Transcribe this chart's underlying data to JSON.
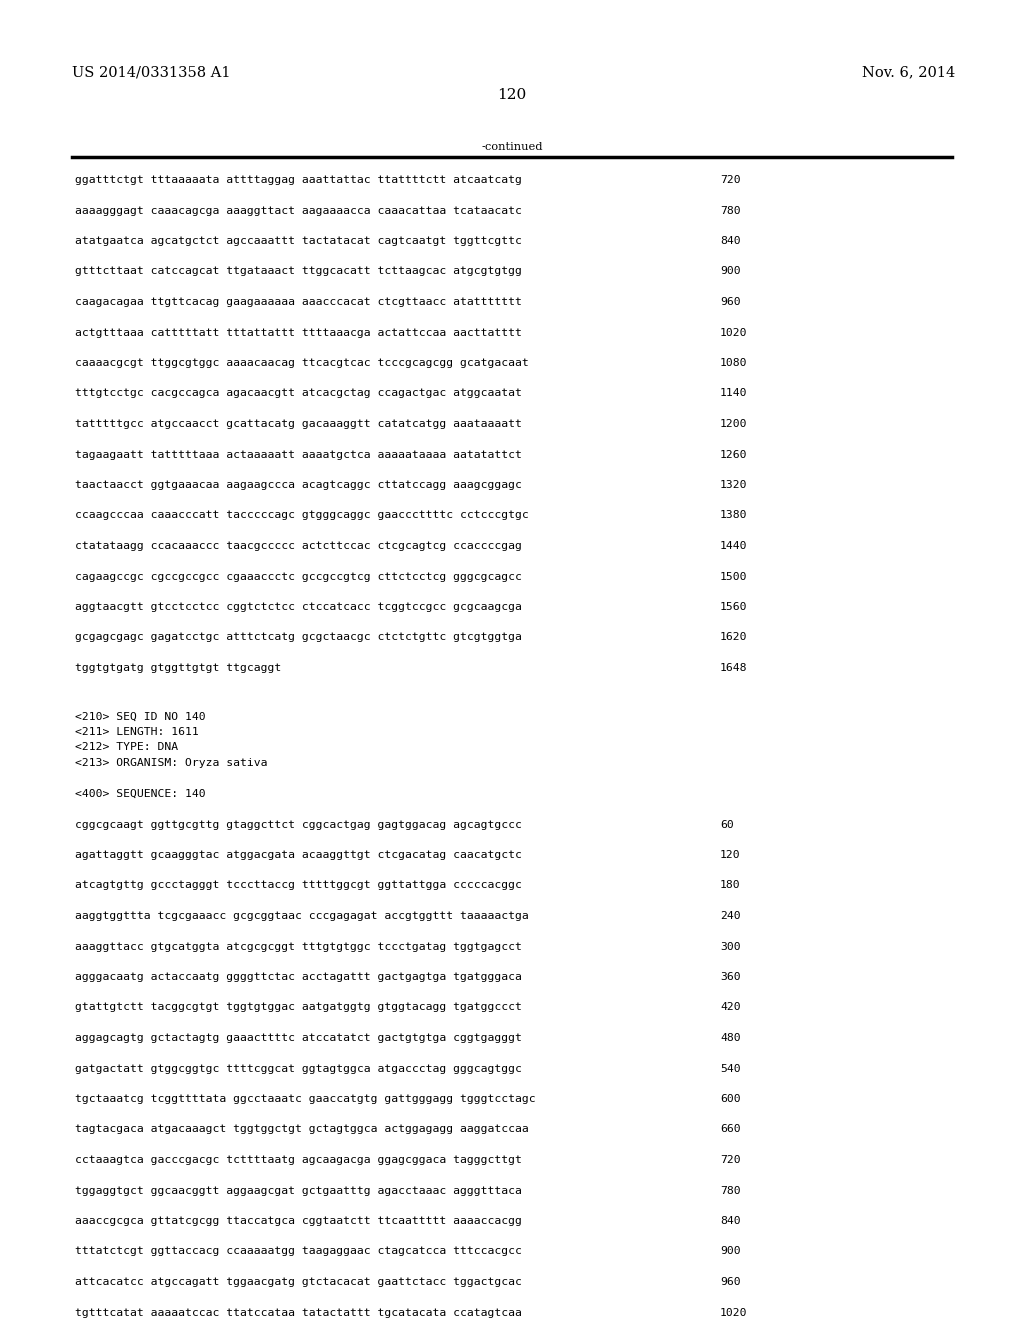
{
  "page_number": "120",
  "left_header": "US 2014/0331358 A1",
  "right_header": "Nov. 6, 2014",
  "continued_label": "-continued",
  "background_color": "#ffffff",
  "text_color": "#000000",
  "font_size_header": 10.5,
  "font_size_page_num": 11.0,
  "font_size_seq": 8.2,
  "font_size_meta": 8.2,
  "sequence_lines_part1": [
    [
      "ggatttctgt tttaaaaata attttaggag aaattattac ttattttctt atcaatcatg",
      "720"
    ],
    [
      "aaaagggagt caaacagcga aaaggttact aagaaaacca caaacattaa tcataacatc",
      "780"
    ],
    [
      "atatgaatca agcatgctct agccaaattt tactatacat cagtcaatgt tggttcgttc",
      "840"
    ],
    [
      "gtttcttaat catccagcat ttgataaact ttggcacatt tcttaagcac atgcgtgtgg",
      "900"
    ],
    [
      "caagacagaa ttgttcacag gaagaaaaaa aaacccacat ctcgttaacc atattttttt",
      "960"
    ],
    [
      "actgtttaaa catttttatt tttattattt ttttaaacga actattccaa aacttatttt",
      "1020"
    ],
    [
      "caaaacgcgt ttggcgtggc aaaacaacag ttcacgtcac tcccgcagcgg gcatgacaat",
      "1080"
    ],
    [
      "tttgtcctgc cacgccagca agacaacgtt atcacgctag ccagactgac atggcaatat",
      "1140"
    ],
    [
      "tatttttgcc atgccaacct gcattacatg gacaaaggtt catatcatgg aaataaaatt",
      "1200"
    ],
    [
      "tagaagaatt tatttttaaa actaaaaatt aaaatgctca aaaaataaaa aatatattct",
      "1260"
    ],
    [
      "taactaacct ggtgaaacaa aagaagccca acagtcaggc cttatccagg aaagcggagc",
      "1320"
    ],
    [
      "ccaagcccaa caaacccatt tacccccagc gtgggcaggc gaacccttttc cctcccgtgc",
      "1380"
    ],
    [
      "ctatataagg ccacaaaccc taacgccccc actcttccac ctcgcagtcg ccaccccgag",
      "1440"
    ],
    [
      "cagaagccgc cgccgccgcc cgaaaccctc gccgccgtcg cttctcctcg gggcgcagcc",
      "1500"
    ],
    [
      "aggtaacgtt gtcctcctcc cggtctctcc ctccatcacc tcggtccgcc gcgcaagcga",
      "1560"
    ],
    [
      "gcgagcgagc gagatcctgc atttctcatg gcgctaacgc ctctctgttc gtcgtggtga",
      "1620"
    ],
    [
      "tggtgtgatg gtggttgtgt ttgcaggt",
      "1648"
    ]
  ],
  "metadata_lines": [
    "<210> SEQ ID NO 140",
    "<211> LENGTH: 1611",
    "<212> TYPE: DNA",
    "<213> ORGANISM: Oryza sativa",
    "",
    "<400> SEQUENCE: 140"
  ],
  "sequence_lines_part2": [
    [
      "cggcgcaagt ggttgcgttg gtaggcttct cggcactgag gagtggacag agcagtgccc",
      "60"
    ],
    [
      "agattaggtt gcaagggtac atggacgata acaaggttgt ctcgacatag caacatgctc",
      "120"
    ],
    [
      "atcagtgttg gccctagggt tcccttaccg tttttggcgt ggttattgga cccccacggc",
      "180"
    ],
    [
      "aaggtggttta tcgcgaaacc gcgcggtaac cccgagagat accgtggttt taaaaactga",
      "240"
    ],
    [
      "aaaggttacc gtgcatggta atcgcgcggt tttgtgtggc tccctgatag tggtgagcct",
      "300"
    ],
    [
      "agggacaatg actaccaatg ggggttctac acctagattt gactgagtga tgatgggaca",
      "360"
    ],
    [
      "gtattgtctt tacggcgtgt tggtgtggac aatgatggtg gtggtacagg tgatggccct",
      "420"
    ],
    [
      "aggagcagtg gctactagtg gaaacttttc atccatatct gactgtgtga cggtgagggt",
      "480"
    ],
    [
      "gatgactatt gtggcggtgc ttttcggcat ggtagtggca atgaccctag gggcagtggc",
      "540"
    ],
    [
      "tgctaaatcg tcggttttata ggcctaaatc gaaccatgtg gattgggagg tgggtcctagc",
      "600"
    ],
    [
      "tagtacgaca atgacaaagct tggtggctgt gctagtggca actggagagg aaggatccaa",
      "660"
    ],
    [
      "cctaaagtca gacccgacgc tcttttaatg agcaagacga ggagcggaca tagggcttgt",
      "720"
    ],
    [
      "tggaggtgct ggcaacggtt aggaagcgat gctgaatttg agacctaaac agggtttaca",
      "780"
    ],
    [
      "aaaccgcgca gttatcgcgg ttaccatgca cggtaatctt ttcaattttt aaaaccacgg",
      "840"
    ],
    [
      "tttatctcgt ggttaccacg ccaaaaatgg taagaggaac ctagcatcca tttccacgcc",
      "900"
    ],
    [
      "attcacatcc atgccagatt tggaacgatg gtctacacat gaattctacc tggactgcac",
      "960"
    ],
    [
      "tgtttcatat aaaaatccac ttatccataa tatactattt tgcatacata ccatagtcaa",
      "1020"
    ]
  ]
}
